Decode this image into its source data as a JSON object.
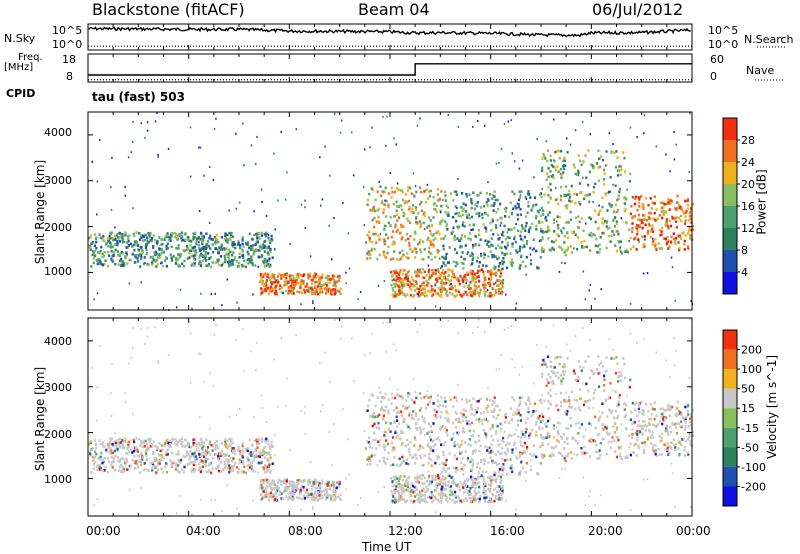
{
  "header": {
    "station": "Blackstone (fitACF)",
    "beam": "Beam 04",
    "date": "06/Jul/2012"
  },
  "top_panels": {
    "nsky_label": "N.Sky",
    "nsearch_label": "N.Search",
    "freq_label_1": "Freq.",
    "freq_label_2": "[MHz]",
    "nave_label": "Nave",
    "cpid_label": "CPID",
    "cpid_value": "tau (fast) 503",
    "noise_ticks": [
      "10^5",
      "10^0"
    ],
    "freq_ticks": [
      "18",
      "8"
    ],
    "nave_ticks": [
      "60",
      "0"
    ]
  },
  "colors": {
    "power_scale": [
      "#1010e0",
      "#2050b0",
      "#2f8060",
      "#4fa070",
      "#88c060",
      "#f0b020",
      "#f07020",
      "#f03010",
      "#e01010"
    ],
    "velocity_scale": [
      "#1010e0",
      "#2050b0",
      "#2f8060",
      "#4fa070",
      "#88c060",
      "#c8c8c8",
      "#f0b020",
      "#f07020",
      "#f03010",
      "#e01010"
    ]
  },
  "chart_data": [
    {
      "type": "line",
      "name": "noise",
      "x_unit": "Time UT",
      "xlim": [
        "00:00",
        "24:00"
      ],
      "series": [
        {
          "name": "N.Sky",
          "x_hours": [
            0,
            2,
            4,
            6,
            8,
            10,
            12,
            13,
            14,
            16,
            18,
            19.5,
            20,
            22,
            24
          ],
          "values_log10": [
            4.6,
            4.5,
            4.4,
            4.4,
            4.0,
            3.9,
            3.8,
            3.5,
            3.6,
            3.4,
            3.0,
            2.9,
            3.5,
            3.6,
            4.2
          ]
        },
        {
          "name": "N.Search",
          "x_hours": [
            0,
            24
          ],
          "values_log10": [
            0.2,
            0.2
          ]
        }
      ]
    },
    {
      "type": "line",
      "name": "frequency-nave",
      "series": [
        {
          "name": "Freq.",
          "x_hours": [
            0,
            13,
            13,
            24
          ],
          "values": [
            10.5,
            10.5,
            14.5,
            14.5
          ]
        },
        {
          "name": "Nave",
          "x_hours": [
            0,
            24
          ],
          "values": [
            5,
            5
          ]
        }
      ],
      "ylim_freq": [
        8,
        18
      ],
      "ylim_nave": [
        0,
        60
      ]
    },
    {
      "type": "heatmap",
      "name": "power",
      "ylabel": "Slant Range [km]",
      "colorbar_label": "Power [dB]",
      "colorbar_ticks": [
        4,
        8,
        12,
        16,
        20,
        24,
        28
      ],
      "yticks": [
        1000,
        2000,
        3000,
        4000
      ],
      "ylim": [
        180,
        4500
      ],
      "xlim": [
        "00:00",
        "24:00"
      ],
      "features": [
        {
          "t": [
            0.0,
            7.3
          ],
          "r": [
            1150,
            1900
          ],
          "level": 12
        },
        {
          "t": [
            6.8,
            10.0
          ],
          "r": [
            550,
            1000
          ],
          "level": 24
        },
        {
          "t": [
            12.0,
            16.5
          ],
          "r": [
            500,
            1100
          ],
          "level": 24
        },
        {
          "t": [
            11.0,
            14.0
          ],
          "r": [
            1300,
            2900
          ],
          "level": 20
        },
        {
          "t": [
            14.0,
            18.0
          ],
          "r": [
            1100,
            2800
          ],
          "level": 12
        },
        {
          "t": [
            18.0,
            21.5
          ],
          "r": [
            1400,
            3700
          ],
          "level": 16
        },
        {
          "t": [
            21.5,
            24.0
          ],
          "r": [
            1500,
            2700
          ],
          "level": 26
        }
      ]
    },
    {
      "type": "heatmap",
      "name": "velocity",
      "ylabel": "Slant Range [km]",
      "colorbar_label": "Velocity [m s^-1]",
      "colorbar_ticks": [
        200,
        100,
        50,
        15,
        -15,
        -50,
        -100,
        -200
      ],
      "yticks": [
        1000,
        2000,
        3000,
        4000
      ],
      "ylim": [
        180,
        4500
      ],
      "xlim": [
        "00:00",
        "24:00"
      ]
    }
  ],
  "xaxis": {
    "ticks": [
      "00:00",
      "04:00",
      "08:00",
      "12:00",
      "16:00",
      "20:00",
      "00:00"
    ],
    "label": "Time UT"
  }
}
